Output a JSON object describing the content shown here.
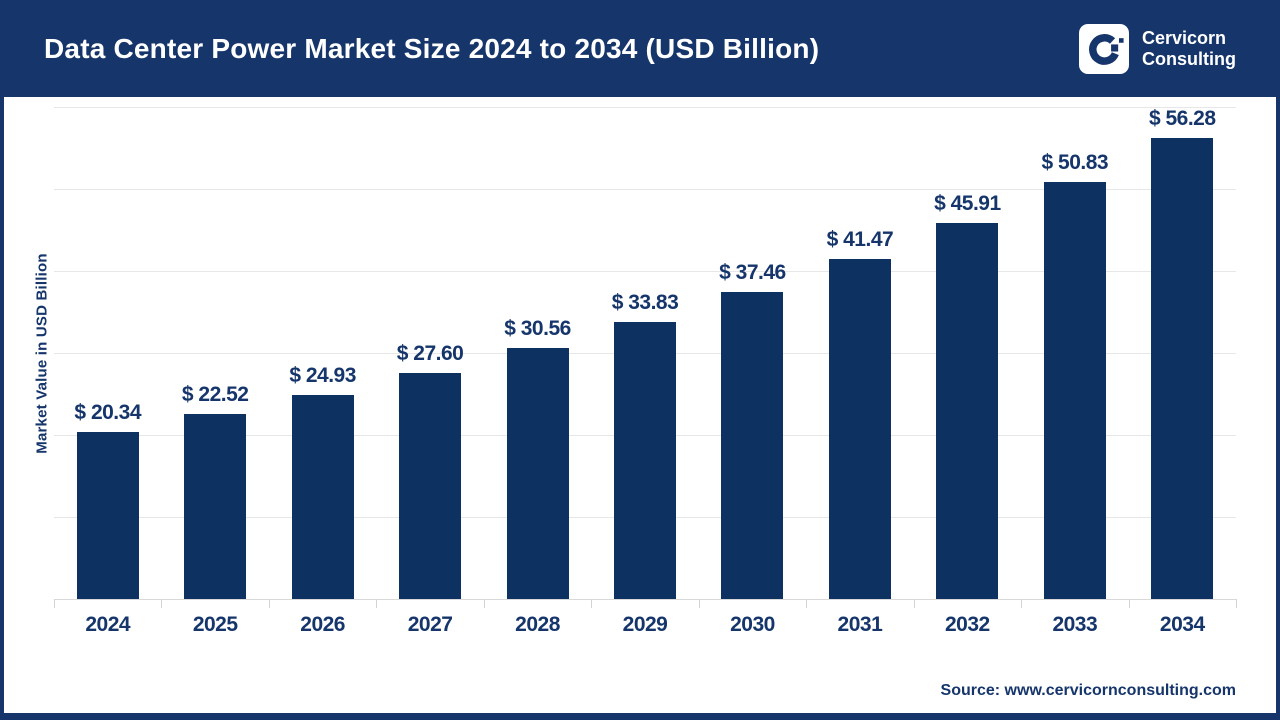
{
  "header": {
    "title": "Data Center Power Market Size 2024 to 2034 (USD Billion)",
    "logo": {
      "icon": "cervicorn-c-mark",
      "line1": "Cervicorn",
      "line2": "Consulting"
    }
  },
  "chart_data": {
    "type": "bar",
    "title": "Data Center Power Market Size 2024 to 2034 (USD Billion)",
    "categories": [
      "2024",
      "2025",
      "2026",
      "2027",
      "2028",
      "2029",
      "2030",
      "2031",
      "2032",
      "2033",
      "2034"
    ],
    "values": [
      20.34,
      22.52,
      24.93,
      27.6,
      30.56,
      33.83,
      37.46,
      41.47,
      45.91,
      50.83,
      56.28
    ],
    "value_prefix": "$ ",
    "xlabel": "",
    "ylabel": "Market Value in USD Billion",
    "ylim": [
      0,
      60
    ],
    "grid": true,
    "gridline_step": 10,
    "legend": "none",
    "bar_color": "#0d3161",
    "label_color": "#15356b"
  },
  "footer": {
    "source": "Source: www.cervicornconsulting.com"
  },
  "colors": {
    "header_bg": "#15356b",
    "bar": "#0d3161",
    "text_navy": "#15356b",
    "gridline": "#e7e7e7",
    "background": "#ffffff"
  }
}
